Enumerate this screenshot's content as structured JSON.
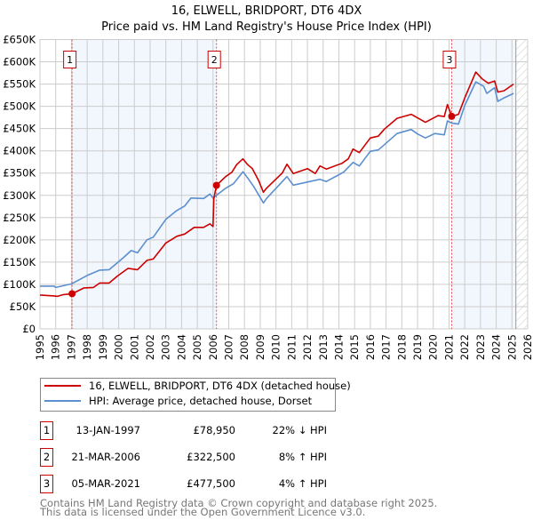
{
  "chart_data": {
    "type": "line",
    "title": "16, ELWELL, BRIDPORT, DT6 4DX",
    "subtitle": "Price paid vs. HM Land Registry's House Price Index (HPI)",
    "xlim": [
      1995,
      2026
    ],
    "ylim": [
      0,
      650000
    ],
    "grid": true,
    "x_ticks": [
      "1995",
      "1996",
      "1997",
      "1998",
      "1999",
      "2000",
      "2001",
      "2002",
      "2003",
      "2004",
      "2005",
      "2006",
      "2007",
      "2008",
      "2009",
      "2010",
      "2011",
      "2012",
      "2013",
      "2014",
      "2015",
      "2016",
      "2017",
      "2018",
      "2019",
      "2020",
      "2021",
      "2022",
      "2023",
      "2024",
      "2025",
      "2026"
    ],
    "y_ticks": [
      {
        "value": 0,
        "label": "£0"
      },
      {
        "value": 50000,
        "label": "£50K"
      },
      {
        "value": 100000,
        "label": "£100K"
      },
      {
        "value": 150000,
        "label": "£150K"
      },
      {
        "value": 200000,
        "label": "£200K"
      },
      {
        "value": 250000,
        "label": "£250K"
      },
      {
        "value": 300000,
        "label": "£300K"
      },
      {
        "value": 350000,
        "label": "£350K"
      },
      {
        "value": 400000,
        "label": "£400K"
      },
      {
        "value": 450000,
        "label": "£450K"
      },
      {
        "value": 500000,
        "label": "£500K"
      },
      {
        "value": 550000,
        "label": "£550K"
      },
      {
        "value": 600000,
        "label": "£600K"
      },
      {
        "value": 650000,
        "label": "£650K"
      }
    ],
    "shaded_ranges": [
      [
        1997.04,
        2006.22
      ],
      [
        2021.17,
        2025.25
      ]
    ],
    "hatched_from": 2025.25,
    "series": [
      {
        "name": "16, ELWELL, BRIDPORT, DT6 4DX (detached house)",
        "color": "#cc0000",
        "points": [
          [
            1995,
            76
          ],
          [
            1995.9,
            74
          ],
          [
            1996.1,
            73
          ],
          [
            1996.5,
            77
          ],
          [
            1997.04,
            78.95
          ],
          [
            1997.8,
            92
          ],
          [
            1998.4,
            93
          ],
          [
            1998.8,
            103
          ],
          [
            1999.4,
            103
          ],
          [
            1999.9,
            118
          ],
          [
            2000.6,
            136
          ],
          [
            2001.2,
            133
          ],
          [
            2001.8,
            154
          ],
          [
            2002.2,
            157
          ],
          [
            2003,
            193
          ],
          [
            2003.7,
            208
          ],
          [
            2004.2,
            213
          ],
          [
            2004.8,
            228
          ],
          [
            2005.4,
            228
          ],
          [
            2005.8,
            236
          ],
          [
            2006.0,
            230
          ],
          [
            2006.05,
            293
          ],
          [
            2006.22,
            322.5
          ],
          [
            2006.8,
            342
          ],
          [
            2007.2,
            352
          ],
          [
            2007.5,
            369
          ],
          [
            2007.9,
            382
          ],
          [
            2008.2,
            369
          ],
          [
            2008.5,
            360
          ],
          [
            2008.9,
            333
          ],
          [
            2009.2,
            307
          ],
          [
            2009.4,
            316
          ],
          [
            2010.4,
            350
          ],
          [
            2010.7,
            370
          ],
          [
            2011.1,
            349
          ],
          [
            2012.0,
            360
          ],
          [
            2012.5,
            349
          ],
          [
            2012.8,
            366
          ],
          [
            2013.2,
            359
          ],
          [
            2014.2,
            372
          ],
          [
            2014.6,
            382
          ],
          [
            2014.9,
            404
          ],
          [
            2015.3,
            396
          ],
          [
            2016.0,
            429
          ],
          [
            2016.5,
            433
          ],
          [
            2016.9,
            449
          ],
          [
            2017.7,
            473
          ],
          [
            2018.6,
            482
          ],
          [
            2019.5,
            464
          ],
          [
            2020.3,
            479
          ],
          [
            2020.7,
            477
          ],
          [
            2020.9,
            504
          ],
          [
            2021.17,
            477.5
          ],
          [
            2021.6,
            482
          ],
          [
            2022.0,
            519
          ],
          [
            2022.7,
            577
          ],
          [
            2023.1,
            562
          ],
          [
            2023.5,
            552
          ],
          [
            2023.9,
            557
          ],
          [
            2024.1,
            532
          ],
          [
            2024.5,
            535
          ],
          [
            2025.1,
            550
          ]
        ]
      },
      {
        "name": "HPI: Average price, detached house, Dorset",
        "color": "#5b8fd0",
        "points": [
          [
            1995,
            96
          ],
          [
            1995.9,
            96
          ],
          [
            1996.0,
            93
          ],
          [
            1997.0,
            101
          ],
          [
            1998.0,
            120
          ],
          [
            1998.8,
            132
          ],
          [
            1999.4,
            133
          ],
          [
            2000.3,
            160
          ],
          [
            2000.8,
            176
          ],
          [
            2001.2,
            171
          ],
          [
            2001.8,
            200
          ],
          [
            2002.2,
            206
          ],
          [
            2003,
            246
          ],
          [
            2003.7,
            266
          ],
          [
            2004.2,
            276
          ],
          [
            2004.6,
            294
          ],
          [
            2005.4,
            293
          ],
          [
            2005.8,
            303
          ],
          [
            2006.0,
            294
          ],
          [
            2006.8,
            316
          ],
          [
            2007.3,
            326
          ],
          [
            2007.9,
            353
          ],
          [
            2008.2,
            339
          ],
          [
            2008.6,
            319
          ],
          [
            2009.2,
            283
          ],
          [
            2009.4,
            293
          ],
          [
            2010.7,
            342
          ],
          [
            2011.1,
            323
          ],
          [
            2012.8,
            336
          ],
          [
            2013.2,
            331
          ],
          [
            2014.3,
            352
          ],
          [
            2014.9,
            374
          ],
          [
            2015.3,
            366
          ],
          [
            2016.0,
            399
          ],
          [
            2016.5,
            402
          ],
          [
            2016.9,
            414
          ],
          [
            2017.7,
            439
          ],
          [
            2018.6,
            448
          ],
          [
            2019.0,
            438
          ],
          [
            2019.5,
            429
          ],
          [
            2020.1,
            439
          ],
          [
            2020.7,
            436
          ],
          [
            2020.9,
            467
          ],
          [
            2021.2,
            462
          ],
          [
            2021.6,
            460
          ],
          [
            2022.0,
            502
          ],
          [
            2022.7,
            555
          ],
          [
            2023.2,
            545
          ],
          [
            2023.4,
            529
          ],
          [
            2023.9,
            542
          ],
          [
            2024.1,
            511
          ],
          [
            2024.5,
            519
          ],
          [
            2025.1,
            529
          ]
        ]
      }
    ],
    "sales": [
      {
        "num": "1",
        "year": 1997.04,
        "date": "13-JAN-1997",
        "price_value": 78950,
        "price": "£78,950",
        "hpi": "22% ↓ HPI"
      },
      {
        "num": "2",
        "year": 2006.22,
        "date": "21-MAR-2006",
        "price_value": 322500,
        "price": "£322,500",
        "hpi": "8% ↑ HPI"
      },
      {
        "num": "3",
        "year": 2021.17,
        "date": "05-MAR-2021",
        "price_value": 477500,
        "price": "£477,500",
        "hpi": "4% ↑ HPI"
      }
    ]
  },
  "legend": {
    "property": "16, ELWELL, BRIDPORT, DT6 4DX (detached house)",
    "hpi": "HPI: Average price, detached house, Dorset"
  },
  "footer": {
    "line1": "Contains HM Land Registry data © Crown copyright and database right 2025.",
    "line2": "This data is licensed under the Open Government Licence v3.0."
  }
}
